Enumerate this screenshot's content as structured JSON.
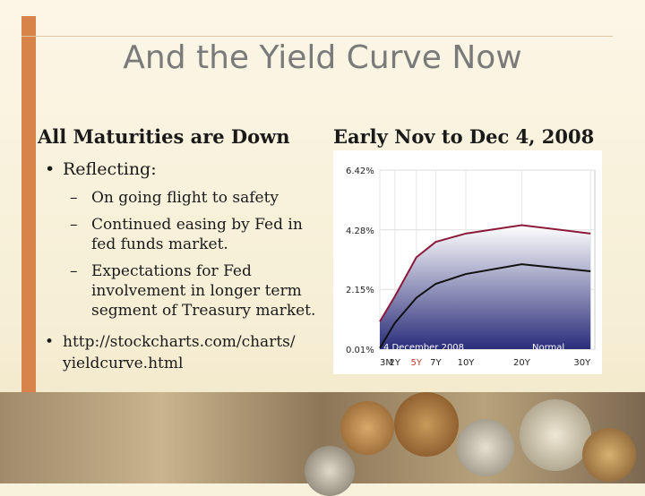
{
  "slide": {
    "title": "And the Yield Curve Now",
    "left_heading": "All Maturities are Down",
    "right_heading": "Early Nov to Dec 4, 2008",
    "bullets": [
      {
        "text": "Reflecting:"
      },
      {
        "text": "http://stockcharts.com/charts/",
        "text2": "yieldcurve.html"
      }
    ],
    "sub_bullets": [
      {
        "lines": [
          "On going flight to safety"
        ]
      },
      {
        "lines": [
          "Continued easing by Fed in",
          "fed funds market."
        ]
      },
      {
        "lines": [
          "Expectations for Fed",
          "involvement in longer term",
          "segment of Treasury market."
        ]
      }
    ],
    "bullet_symbol": "•",
    "dash_symbol": "–"
  },
  "chart_data": {
    "type": "line",
    "x": [
      "3M",
      "2Y",
      "5Y",
      "7Y",
      "10Y",
      "20Y",
      "30Y"
    ],
    "tick_labels": [
      "3M",
      "2Y",
      "5Y",
      "7Y",
      "10Y",
      "20Y",
      "30Y"
    ],
    "y_tick_labels": [
      "6.42%",
      "4.28%",
      "2.15%",
      "0.01%"
    ],
    "ylim": [
      0.01,
      6.42
    ],
    "annotation_date": "4 December 2008",
    "annotation_mode": "Normal",
    "series": [
      {
        "values": [
          1.0,
          1.9,
          3.3,
          3.85,
          4.15,
          4.45,
          4.15
        ],
        "color": "#8b1a3a"
      },
      {
        "values": [
          0.05,
          0.95,
          1.85,
          2.35,
          2.7,
          3.05,
          2.8
        ],
        "color": "#111111"
      }
    ],
    "highlight_tick": "5Y",
    "colors": {
      "area_top": "#ffffff",
      "area_bottom": "#2a2d7a",
      "highlight": "#c0392b"
    }
  }
}
